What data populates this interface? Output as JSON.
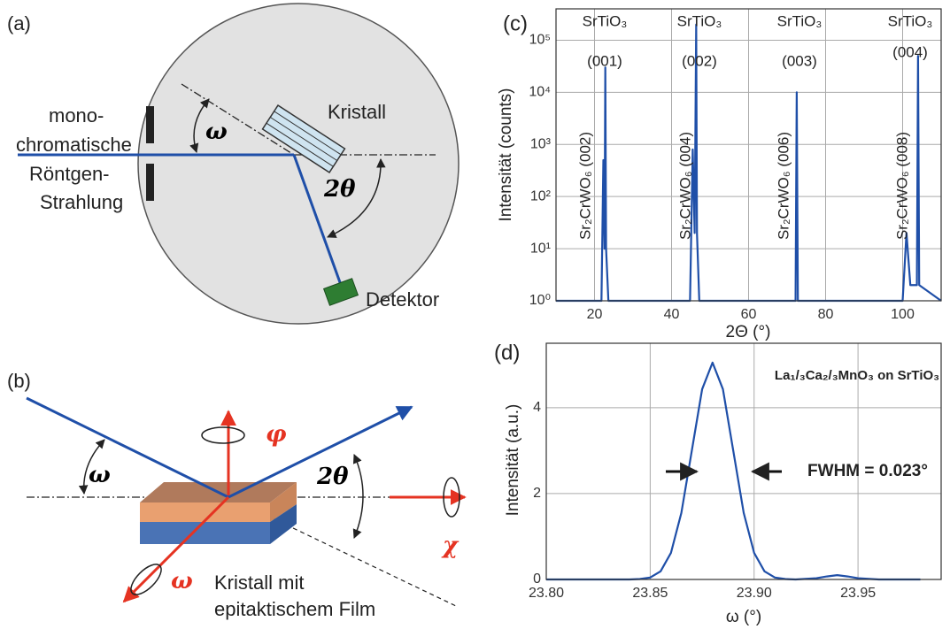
{
  "diagram_a": {
    "label": "(a)",
    "source": [
      "mono-",
      "chromatische",
      "Röntgen-",
      "Strahlung"
    ],
    "crystal": "Kristall",
    "omega": "ω",
    "two_theta": "2θ",
    "detector": "Detektor"
  },
  "diagram_b": {
    "label": "(b)",
    "phi": "φ",
    "omega": "ω",
    "two_theta": "2θ",
    "chi": "χ",
    "omega_rot": "ω",
    "sample": [
      "Kristall mit",
      "epitaktischem Film"
    ]
  },
  "chart_data": [
    {
      "type": "line",
      "panel_label": "(c)",
      "x_label": "2Θ (°)",
      "y_label": "Intensität (counts)",
      "log_y": true,
      "grid": true,
      "xlim": [
        10,
        110
      ],
      "ylim": [
        1,
        400000
      ],
      "xticks": [
        20,
        40,
        60,
        80,
        100
      ],
      "yticks": [
        {
          "value": 1,
          "label": "10⁰"
        },
        {
          "value": 10,
          "label": "10¹"
        },
        {
          "value": 100,
          "label": "10²"
        },
        {
          "value": 1000,
          "label": "10³"
        },
        {
          "value": 10000,
          "label": "10⁴"
        },
        {
          "value": 100000,
          "label": "10⁵"
        }
      ],
      "x": [
        10,
        21.8,
        22.3,
        22.6,
        22.8,
        23.0,
        23.6,
        44.8,
        45.5,
        46.0,
        46.4,
        46.6,
        47.2,
        72.2,
        72.5,
        72.8,
        100,
        101,
        102,
        103.7,
        104,
        104.3,
        110
      ],
      "series": [
        {
          "color": "#1f4fa8",
          "values": [
            1,
            1,
            500,
            10,
            30000,
            10,
            1,
            1,
            800,
            20,
            200000,
            20,
            1,
            1,
            10000,
            1,
            1,
            20,
            2,
            2,
            50000,
            2,
            1
          ]
        }
      ],
      "annotations": [
        "SrTiO₃",
        "(001)",
        "SrTiO₃",
        "(002)",
        "SrTiO₃",
        "(003)",
        "SrTiO₃",
        "(004)",
        "Sr₂CrWO₆ (002)",
        "Sr₂CrWO₆ (004)",
        "Sr₂CrWO₆ (006)",
        "Sr₂CrWO₆ (008)"
      ]
    },
    {
      "type": "line",
      "panel_label": "(d)",
      "x_label": "ω  (°)",
      "y_label": "Intensität (a.u.)",
      "log_y": false,
      "grid": true,
      "xlim": [
        23.8,
        23.99
      ],
      "ylim": [
        0,
        5.5
      ],
      "xticks": [
        {
          "value": 23.8,
          "label": "23.80"
        },
        23.85,
        {
          "value": 23.9,
          "label": "23.90"
        },
        23.95
      ],
      "yticks": [
        0,
        2,
        4
      ],
      "x": [
        23.8,
        23.82,
        23.84,
        23.845,
        23.85,
        23.855,
        23.86,
        23.865,
        23.87,
        23.875,
        23.88,
        23.885,
        23.89,
        23.895,
        23.9,
        23.905,
        23.91,
        23.915,
        23.92,
        23.93,
        23.935,
        23.94,
        23.945,
        23.95,
        23.96,
        23.98
      ],
      "series": [
        {
          "color": "#1f4fa8",
          "values": [
            0,
            0,
            0,
            0.01,
            0.045,
            0.19,
            0.62,
            1.55,
            2.99,
            4.43,
            5.05,
            4.43,
            2.99,
            1.55,
            0.62,
            0.19,
            0.045,
            0.01,
            0,
            0.03,
            0.07,
            0.1,
            0.07,
            0.03,
            0,
            0
          ]
        }
      ],
      "annotations": [
        "La₁/₃Ca₂/₃MnO₃ on SrTiO₃",
        "FWHM = 0.023°"
      ]
    }
  ]
}
